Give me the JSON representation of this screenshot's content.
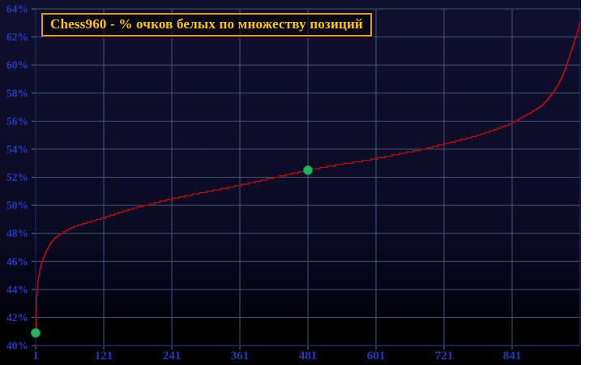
{
  "colors": {
    "page_bg": "#ffffff",
    "chart_bg_top": "#10102f",
    "chart_bg_bottom": "#000000",
    "grid": "#44537a",
    "axis_border": "#1c2c6e",
    "tick": "#5f6f9e",
    "axis_label": "#2838bf",
    "title_text": "#ffc40d",
    "title_border": "#e09c10",
    "line": "#b80d12",
    "marker": "#25b55c"
  },
  "chart_data": {
    "type": "line",
    "title": "Chess960 - % очков белых по множеству позиций",
    "xlabel": "",
    "ylabel": "",
    "grid": true,
    "legend": "none",
    "x_axis": {
      "range": [
        1,
        961
      ],
      "ticks": [
        1,
        121,
        241,
        361,
        481,
        601,
        721,
        841
      ],
      "tick_labels": [
        "1",
        "121",
        "241",
        "361",
        "481",
        "601",
        "721",
        "841"
      ]
    },
    "y_axis": {
      "range": [
        40,
        64
      ],
      "ticks": [
        40,
        42,
        44,
        46,
        48,
        50,
        52,
        54,
        56,
        58,
        60,
        62,
        64
      ],
      "tick_labels": [
        "40%",
        "42%",
        "44%",
        "46%",
        "48%",
        "50%",
        "52%",
        "54%",
        "56%",
        "58%",
        "60%",
        "62%",
        "64%"
      ]
    },
    "series": [
      {
        "color": "#b80d12",
        "quantize_step": 0.1,
        "anchor_points": [
          [
            1,
            40.9
          ],
          [
            2,
            42.6
          ],
          [
            3,
            43.6
          ],
          [
            5,
            44.6
          ],
          [
            8,
            45.4
          ],
          [
            12,
            46.0
          ],
          [
            18,
            46.6
          ],
          [
            26,
            47.2
          ],
          [
            36,
            47.7
          ],
          [
            50,
            48.1
          ],
          [
            70,
            48.5
          ],
          [
            95,
            48.8
          ],
          [
            121,
            49.1
          ],
          [
            150,
            49.5
          ],
          [
            185,
            49.9
          ],
          [
            225,
            50.3
          ],
          [
            270,
            50.7
          ],
          [
            320,
            51.1
          ],
          [
            370,
            51.5
          ],
          [
            425,
            52.0
          ],
          [
            481,
            52.5
          ],
          [
            535,
            52.9
          ],
          [
            585,
            53.2
          ],
          [
            635,
            53.6
          ],
          [
            685,
            54.0
          ],
          [
            725,
            54.4
          ],
          [
            765,
            54.8
          ],
          [
            805,
            55.3
          ],
          [
            838,
            55.8
          ],
          [
            860,
            56.3
          ],
          [
            878,
            56.7
          ],
          [
            893,
            57.1
          ],
          [
            905,
            57.6
          ],
          [
            914,
            58.1
          ],
          [
            922,
            58.6
          ],
          [
            929,
            59.2
          ],
          [
            935,
            59.8
          ],
          [
            940,
            60.4
          ],
          [
            945,
            61.0
          ],
          [
            949,
            61.5
          ],
          [
            953,
            62.0
          ],
          [
            956,
            62.4
          ],
          [
            958,
            62.7
          ],
          [
            960,
            63.1
          ]
        ]
      }
    ],
    "markers": {
      "color": "#25b55c",
      "points": [
        [
          1,
          40.9
        ],
        [
          481,
          52.5
        ]
      ]
    }
  }
}
